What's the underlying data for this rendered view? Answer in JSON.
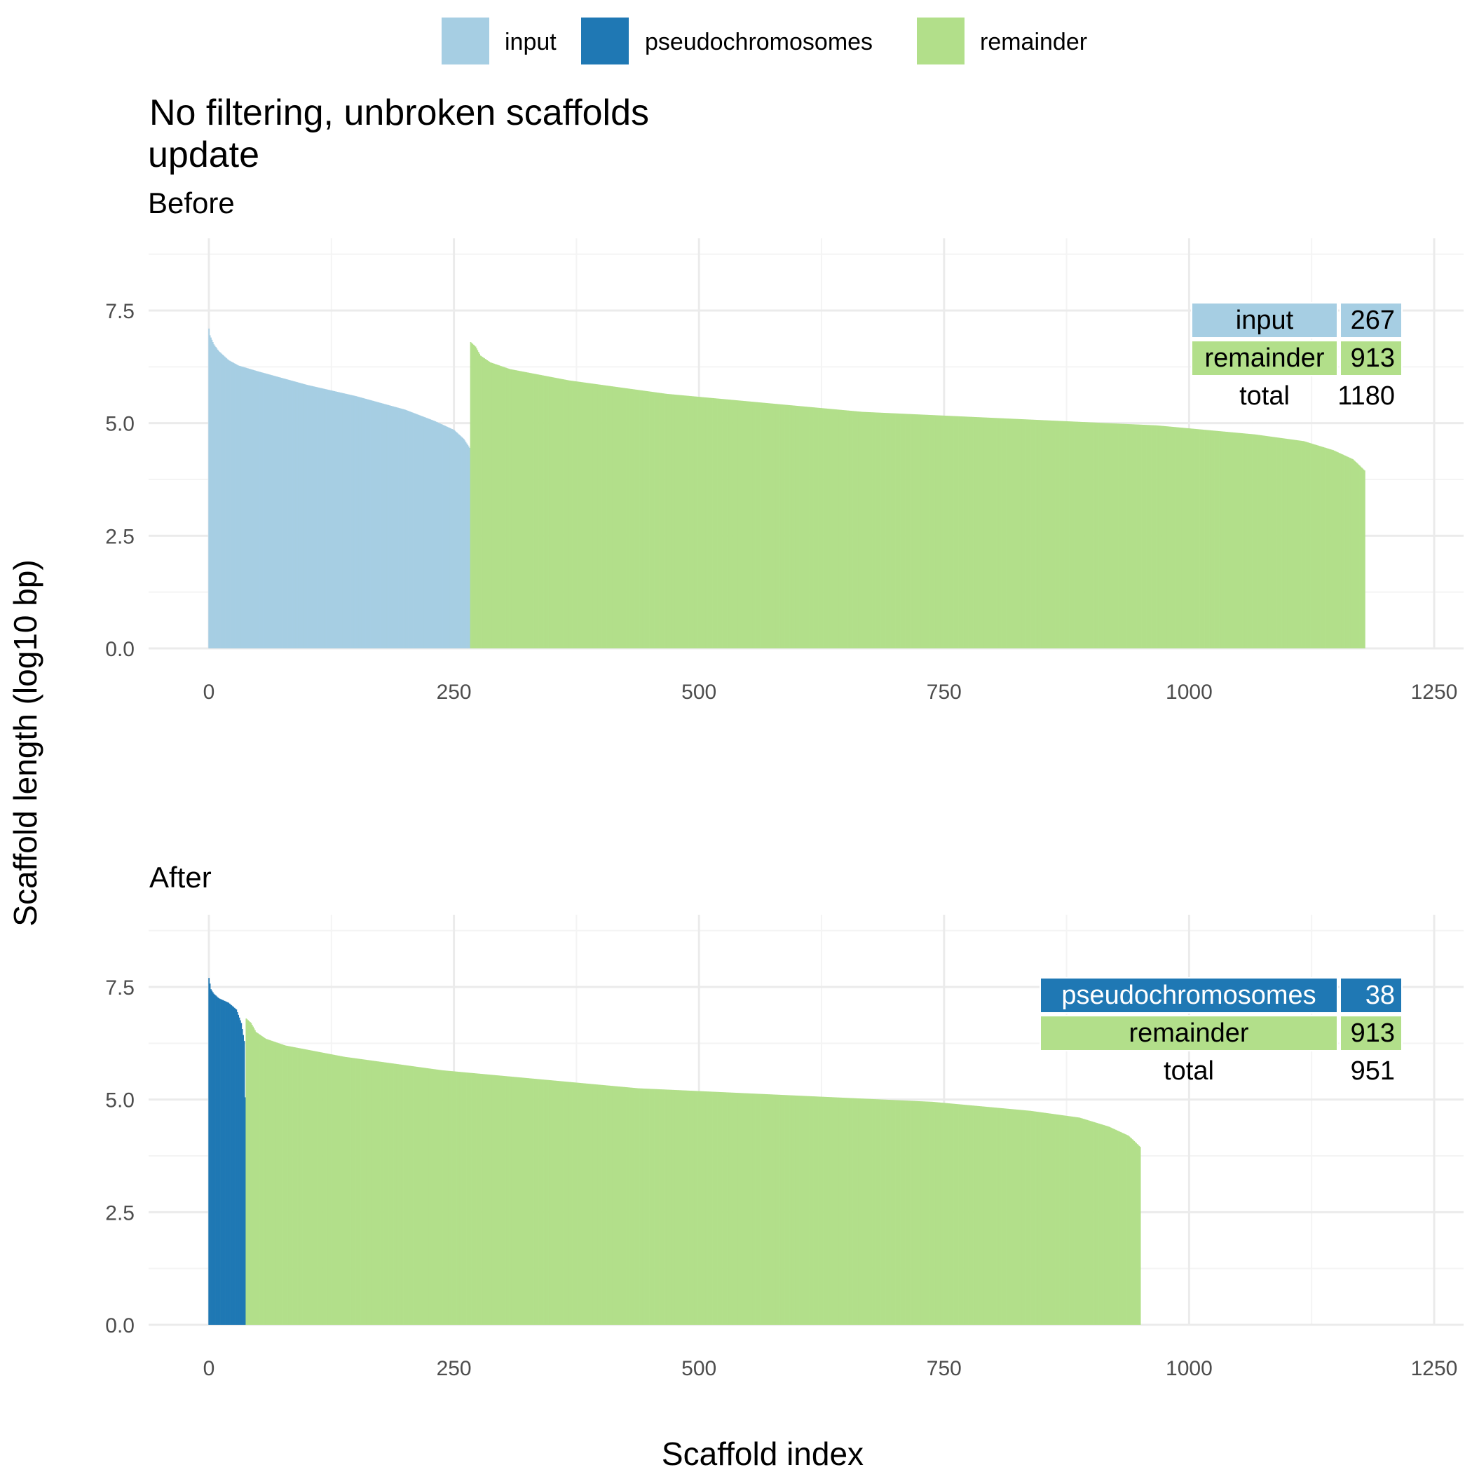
{
  "colors": {
    "input": "#a6cee3",
    "pseudochromosomes": "#1f78b4",
    "remainder": "#b2df8a",
    "grid_major": "#ebebeb",
    "grid_minor": "#f4f4f4"
  },
  "legend": [
    {
      "key": "input",
      "label": "input"
    },
    {
      "key": "pseudochromosomes",
      "label": "pseudochromosomes"
    },
    {
      "key": "remainder",
      "label": "remainder"
    }
  ],
  "title_line1": "No filtering, unbroken scaffolds",
  "title_line2": "update",
  "ylabel": "Scaffold length (log10 bp)",
  "xlabel": "Scaffold index",
  "chart_data": [
    {
      "type": "bar",
      "subtitle": "Before",
      "xlim": [
        0,
        1250
      ],
      "ylim": [
        0,
        8.5
      ],
      "x_ticks": [
        0,
        250,
        500,
        750,
        1000,
        1250
      ],
      "y_ticks": [
        "0.0",
        "2.5",
        "5.0",
        "7.5"
      ],
      "series": [
        {
          "name": "input",
          "x_start": 0,
          "count": 267,
          "profile_x": [
            0,
            1,
            5,
            10,
            20,
            30,
            50,
            100,
            150,
            200,
            230,
            250,
            260,
            266
          ],
          "profile_y": [
            7.1,
            6.95,
            6.75,
            6.6,
            6.4,
            6.28,
            6.15,
            5.85,
            5.6,
            5.3,
            5.05,
            4.85,
            4.65,
            4.45
          ]
        },
        {
          "name": "remainder",
          "x_start": 267,
          "count": 913,
          "profile_x": [
            0,
            5,
            10,
            20,
            40,
            100,
            200,
            300,
            400,
            500,
            600,
            700,
            800,
            850,
            880,
            900,
            905,
            912
          ],
          "profile_y": [
            6.8,
            6.7,
            6.5,
            6.35,
            6.2,
            5.95,
            5.65,
            5.45,
            5.25,
            5.15,
            5.05,
            4.95,
            4.75,
            4.6,
            4.4,
            4.2,
            4.1,
            3.95
          ]
        }
      ],
      "table": {
        "rows": [
          {
            "key": "input",
            "label": "input",
            "value": "267"
          },
          {
            "key": "remainder",
            "label": "remainder",
            "value": "913"
          }
        ],
        "total_label": "total",
        "total_value": "1180"
      }
    },
    {
      "type": "bar",
      "subtitle": "After",
      "xlim": [
        0,
        1250
      ],
      "ylim": [
        0,
        8.5
      ],
      "x_ticks": [
        0,
        250,
        500,
        750,
        1000,
        1250
      ],
      "y_ticks": [
        "0.0",
        "2.5",
        "5.0",
        "7.5"
      ],
      "series": [
        {
          "name": "pseudochromosomes",
          "x_start": 0,
          "count": 38,
          "profile_x": [
            0,
            2,
            5,
            10,
            20,
            28,
            33,
            36,
            37
          ],
          "profile_y": [
            7.7,
            7.45,
            7.35,
            7.25,
            7.15,
            7.0,
            6.7,
            6.3,
            5.05
          ]
        },
        {
          "name": "remainder",
          "x_start": 38,
          "count": 913,
          "profile_x": [
            0,
            5,
            10,
            20,
            40,
            100,
            200,
            300,
            400,
            500,
            600,
            700,
            800,
            850,
            880,
            900,
            905,
            912
          ],
          "profile_y": [
            6.8,
            6.7,
            6.5,
            6.35,
            6.2,
            5.95,
            5.65,
            5.45,
            5.25,
            5.15,
            5.05,
            4.95,
            4.75,
            4.6,
            4.4,
            4.2,
            4.1,
            3.95
          ]
        }
      ],
      "table": {
        "rows": [
          {
            "key": "pseudochromosomes",
            "label": "pseudochromosomes",
            "value": "38"
          },
          {
            "key": "remainder",
            "label": "remainder",
            "value": "913"
          }
        ],
        "total_label": "total",
        "total_value": "951"
      }
    }
  ]
}
